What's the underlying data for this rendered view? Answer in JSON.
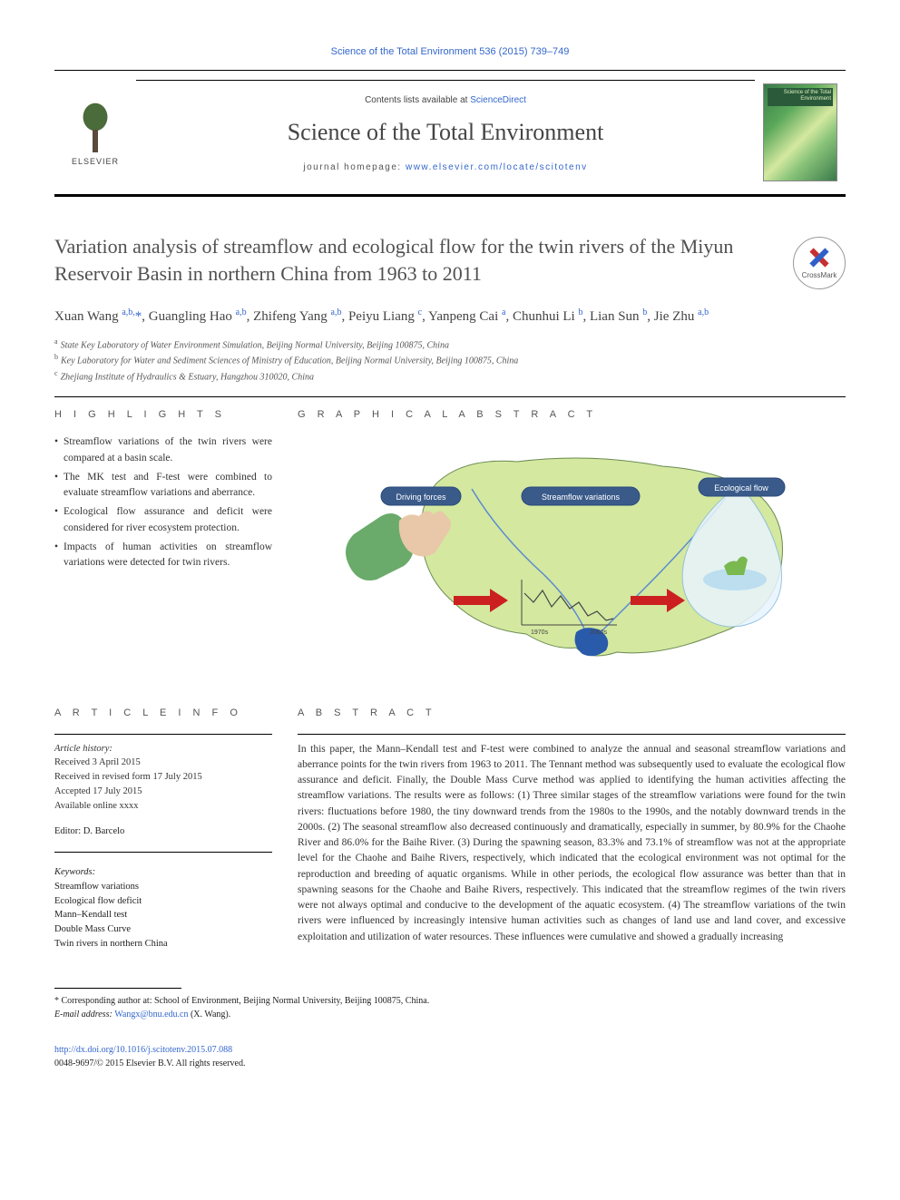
{
  "citation": "Science of the Total Environment 536 (2015) 739–749",
  "masthead": {
    "contents_prefix": "Contents lists available at ",
    "contents_link": "ScienceDirect",
    "journal_title": "Science of the Total Environment",
    "homepage_prefix": "journal homepage: ",
    "homepage_url": "www.elsevier.com/locate/scitotenv",
    "publisher_logo": "ELSEVIER",
    "cover_label": "Science of the\nTotal Environment"
  },
  "crossmark_label": "CrossMark",
  "article": {
    "title": "Variation analysis of streamflow and ecological flow for the twin rivers of the Miyun Reservoir Basin in northern China from 1963 to 2011",
    "authors_html": "Xuan Wang <sup>a,b,</sup><span class='star'>*</span>, Guangling Hao <sup>a,b</sup>, Zhifeng Yang <sup>a,b</sup>, Peiyu Liang <sup>c</sup>, Yanpeng Cai <sup>a</sup>, Chunhui Li <sup>b</sup>, Lian Sun <sup>b</sup>, Jie Zhu <sup>a,b</sup>",
    "affiliations": [
      {
        "key": "a",
        "text": "State Key Laboratory of Water Environment Simulation, Beijing Normal University, Beijing 100875, China"
      },
      {
        "key": "b",
        "text": "Key Laboratory for Water and Sediment Sciences of Ministry of Education, Beijing Normal University, Beijing 100875, China"
      },
      {
        "key": "c",
        "text": "Zhejiang Institute of Hydraulics & Estuary, Hangzhou 310020, China"
      }
    ]
  },
  "highlights": {
    "heading": "H I G H L I G H T S",
    "items": [
      "Streamflow variations of the twin rivers were compared at a basin scale.",
      "The MK test and F-test were combined to evaluate streamflow variations and aberrance.",
      "Ecological flow assurance and deficit were considered for river ecosystem protection.",
      "Impacts of human activities on streamflow variations were detected for twin rivers."
    ]
  },
  "graphical_abstract": {
    "heading": "G R A P H I C A L   A B S T R A C T",
    "node_labels": {
      "driving": "Driving forces",
      "variations": "Streamflow variations",
      "ecological": "Ecological flow"
    },
    "chart": {
      "type": "infographic",
      "background_color": "#ffffff",
      "map_fill": "#d4e8a0",
      "map_stroke": "#6a8a50",
      "reservoir_color": "#2a5aaa",
      "river_color": "#5a8ad0",
      "drop_fill": "#e8f4ff",
      "drop_stroke": "#88bbdd",
      "hand_fill": "#e8c8a8",
      "sleeve_fill": "#6aaa6a",
      "arrow_color": "#cc2020",
      "node_fill": "#3a5a8a",
      "node_stroke": "#2a4a7a",
      "node_text_color": "#ffffff",
      "node_fontsize": 9,
      "streamflow_line_color": "#444444",
      "x_axis_labels": [
        "1970s",
        "",
        "2000s"
      ]
    }
  },
  "article_info": {
    "heading": "A R T I C L E   I N F O",
    "history_label": "Article history:",
    "history": [
      "Received 3 April 2015",
      "Received in revised form 17 July 2015",
      "Accepted 17 July 2015",
      "Available online xxxx"
    ],
    "editor_label": "Editor: ",
    "editor": "D. Barcelo",
    "keywords_label": "Keywords:",
    "keywords": [
      "Streamflow variations",
      "Ecological flow deficit",
      "Mann–Kendall test",
      "Double Mass Curve",
      "Twin rivers in northern China"
    ]
  },
  "abstract": {
    "heading": "A B S T R A C T",
    "text": "In this paper, the Mann–Kendall test and F-test were combined to analyze the annual and seasonal streamflow variations and aberrance points for the twin rivers from 1963 to 2011. The Tennant method was subsequently used to evaluate the ecological flow assurance and deficit. Finally, the Double Mass Curve method was applied to identifying the human activities affecting the streamflow variations. The results were as follows: (1) Three similar stages of the streamflow variations were found for the twin rivers: fluctuations before 1980, the tiny downward trends from the 1980s to the 1990s, and the notably downward trends in the 2000s. (2) The seasonal streamflow also decreased continuously and dramatically, especially in summer, by 80.9% for the Chaohe River and 86.0% for the Baihe River. (3) During the spawning season, 83.3% and 73.1% of streamflow was not at the appropriate level for the Chaohe and Baihe Rivers, respectively, which indicated that the ecological environment was not optimal for the reproduction and breeding of aquatic organisms. While in other periods, the ecological flow assurance was better than that in spawning seasons for the Chaohe and Baihe Rivers, respectively. This indicated that the streamflow regimes of the twin rivers were not always optimal and conducive to the development of the aquatic ecosystem. (4) The streamflow variations of the twin rivers were influenced by increasingly intensive human activities such as changes of land use and land cover, and excessive exploitation and utilization of water resources. These influences were cumulative and showed a gradually increasing"
  },
  "footnote": {
    "corresponding_label": "Corresponding author at: ",
    "corresponding_text": "School of Environment, Beijing Normal University, Beijing 100875, China.",
    "email_label": "E-mail address: ",
    "email": "Wangx@bnu.edu.cn",
    "email_attribution": " (X. Wang)."
  },
  "doi": {
    "url": "http://dx.doi.org/10.1016/j.scitotenv.2015.07.088",
    "issn_line": "0048-9697/© 2015 Elsevier B.V. All rights reserved."
  }
}
